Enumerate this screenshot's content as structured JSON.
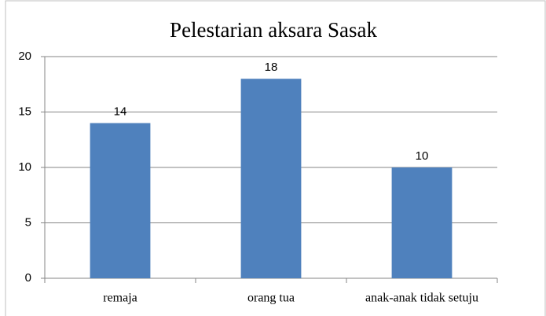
{
  "chart_data": {
    "type": "bar",
    "title": "Pelestarian aksara Sasak",
    "categories": [
      "remaja",
      "orang tua",
      "anak-anak tidak setuju"
    ],
    "values": [
      14,
      18,
      10
    ],
    "color": "#4f81bd",
    "ylim": [
      0,
      20
    ],
    "yticks": [
      0,
      5,
      10,
      15,
      20
    ],
    "grid": true
  }
}
